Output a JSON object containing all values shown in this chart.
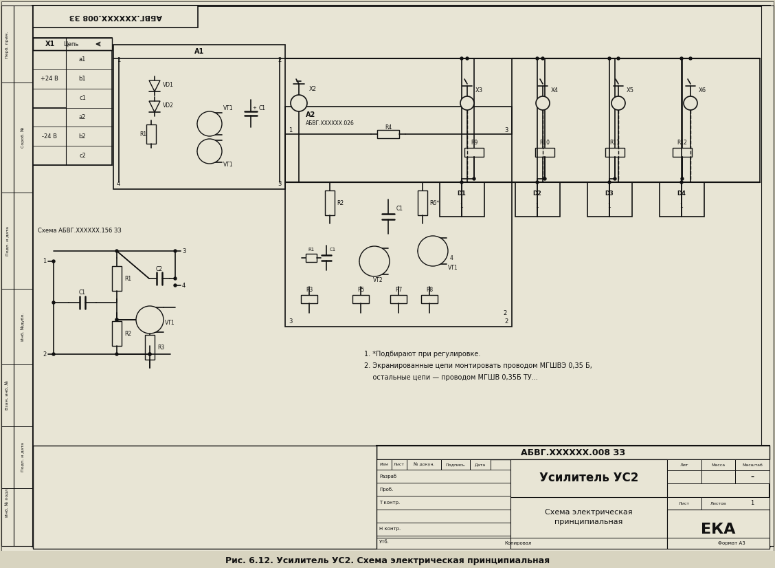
{
  "title": "Рис. 6.12. Усилитель УС2. Схема электрическая принципиальная",
  "bg_color": "#d8d4c0",
  "paper_color": "#e8e5d5",
  "line_color": "#111111",
  "stamp_doc_number": "АБВГ.XXXXXX.008 ЗЗ",
  "stamp_title1": "Усилитель УС2",
  "stamp_title2": "Схема электрическая",
  "stamp_title3": "принципиальная",
  "stamp_eka": "ЕКА",
  "stamp_format": "Формат А3",
  "stamp_copy": "Копировал",
  "stamp_lit": "Лит",
  "stamp_mass": "Масса",
  "stamp_scale": "Масштаб",
  "stamp_list": "Лист",
  "stamp_listov": "Листов",
  "stamp_listov_val": "1",
  "stamp_izm": "Изм",
  "stamp_list2": "Лист",
  "stamp_ndok": "№ докун.",
  "stamp_podpis": "Подпись",
  "stamp_data": "Дата",
  "stamp_razrab": "Разраб",
  "stamp_prob": "Проб.",
  "stamp_tkontr": "Т контр.",
  "stamp_nkontr": "Н контр.",
  "stamp_utv": "Утб.",
  "corner_text": "АБВГ.XXXXXX.008 ЗЗ",
  "note1": "1. *Подбирают при регулировке.",
  "note2": "2. Экранированные цепи монтировать проводом МГШВЭ 0,35 Б,",
  "note3": "    остальные цепи — проводом МГШВ 0,35Б ТУ...",
  "schema_label": "Схема АБВГ.XXXXXX.156 ЗЗ",
  "a1_label": "A1",
  "a2_label": "A2",
  "a2_sub": "АБВГ.XXXXXX.026",
  "left_labels": [
    "Перб. прим.",
    "Сороб. №",
    "Подп. и дата",
    "Инб. №дубл.",
    "Взам. инб. №",
    "Подп. и дата",
    "Инб. № подл."
  ]
}
